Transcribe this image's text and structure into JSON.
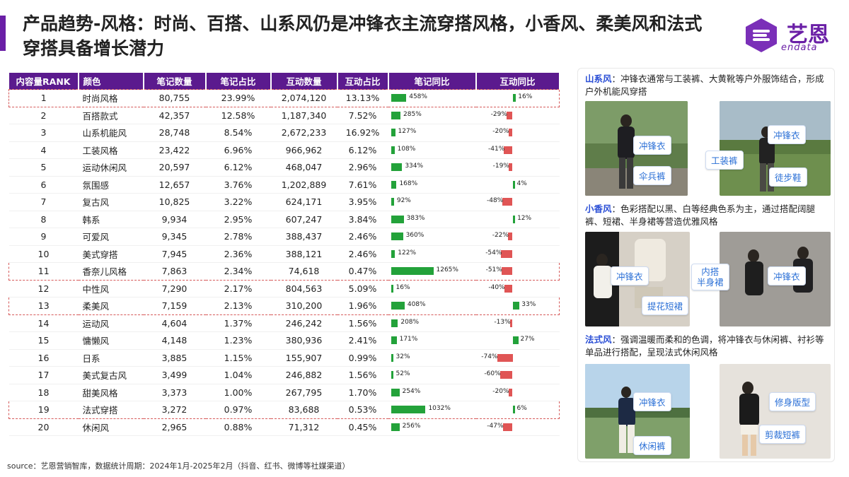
{
  "title": "产品趋势-风格：时尚、百搭、山系风仍是冲锋衣主流穿搭风格，小香风、柔美风和法式穿搭具备增长潜力",
  "logo": {
    "text": "艺恩",
    "sub": "endata"
  },
  "table": {
    "headers": [
      "内容量RANK",
      "颜色",
      "笔记数量",
      "笔记占比",
      "互动数量",
      "互动占比",
      "笔记同比",
      "互动同比"
    ],
    "rows": [
      {
        "rank": "1",
        "name": "时尚风格",
        "notes": "80,755",
        "note_share": "23.99%",
        "interact": "2,074,120",
        "interact_share": "13.13%",
        "note_yoy": "458%",
        "note_yoy_v": 458,
        "int_yoy": "16%",
        "int_yoy_v": 16,
        "highlight": true
      },
      {
        "rank": "2",
        "name": "百搭款式",
        "notes": "42,357",
        "note_share": "12.58%",
        "interact": "1,187,340",
        "interact_share": "7.52%",
        "note_yoy": "285%",
        "note_yoy_v": 285,
        "int_yoy": "-29%",
        "int_yoy_v": -29,
        "highlight": false
      },
      {
        "rank": "3",
        "name": "山系机能风",
        "notes": "28,748",
        "note_share": "8.54%",
        "interact": "2,672,233",
        "interact_share": "16.92%",
        "note_yoy": "127%",
        "note_yoy_v": 127,
        "int_yoy": "-20%",
        "int_yoy_v": -20,
        "highlight": false
      },
      {
        "rank": "4",
        "name": "工装风格",
        "notes": "23,422",
        "note_share": "6.96%",
        "interact": "966,962",
        "interact_share": "6.12%",
        "note_yoy": "108%",
        "note_yoy_v": 108,
        "int_yoy": "-41%",
        "int_yoy_v": -41,
        "highlight": false
      },
      {
        "rank": "5",
        "name": "运动休闲风",
        "notes": "20,597",
        "note_share": "6.12%",
        "interact": "468,047",
        "interact_share": "2.96%",
        "note_yoy": "334%",
        "note_yoy_v": 334,
        "int_yoy": "-19%",
        "int_yoy_v": -19,
        "highlight": false
      },
      {
        "rank": "6",
        "name": "氛围感",
        "notes": "12,657",
        "note_share": "3.76%",
        "interact": "1,202,889",
        "interact_share": "7.61%",
        "note_yoy": "168%",
        "note_yoy_v": 168,
        "int_yoy": "4%",
        "int_yoy_v": 4,
        "highlight": false
      },
      {
        "rank": "7",
        "name": "复古风",
        "notes": "10,825",
        "note_share": "3.22%",
        "interact": "624,171",
        "interact_share": "3.95%",
        "note_yoy": "92%",
        "note_yoy_v": 92,
        "int_yoy": "-48%",
        "int_yoy_v": -48,
        "highlight": false
      },
      {
        "rank": "8",
        "name": "韩系",
        "notes": "9,934",
        "note_share": "2.95%",
        "interact": "607,247",
        "interact_share": "3.84%",
        "note_yoy": "383%",
        "note_yoy_v": 383,
        "int_yoy": "12%",
        "int_yoy_v": 12,
        "highlight": false
      },
      {
        "rank": "9",
        "name": "可爱风",
        "notes": "9,345",
        "note_share": "2.78%",
        "interact": "388,437",
        "interact_share": "2.46%",
        "note_yoy": "360%",
        "note_yoy_v": 360,
        "int_yoy": "-22%",
        "int_yoy_v": -22,
        "highlight": false
      },
      {
        "rank": "10",
        "name": "美式穿搭",
        "notes": "7,945",
        "note_share": "2.36%",
        "interact": "388,121",
        "interact_share": "2.46%",
        "note_yoy": "122%",
        "note_yoy_v": 122,
        "int_yoy": "-54%",
        "int_yoy_v": -54,
        "highlight": false
      },
      {
        "rank": "11",
        "name": "香奈儿风格",
        "notes": "7,863",
        "note_share": "2.34%",
        "interact": "74,618",
        "interact_share": "0.47%",
        "note_yoy": "1265%",
        "note_yoy_v": 1265,
        "int_yoy": "-51%",
        "int_yoy_v": -51,
        "highlight": true
      },
      {
        "rank": "12",
        "name": "中性风",
        "notes": "7,290",
        "note_share": "2.17%",
        "interact": "804,563",
        "interact_share": "5.09%",
        "note_yoy": "16%",
        "note_yoy_v": 16,
        "int_yoy": "-40%",
        "int_yoy_v": -40,
        "highlight": false
      },
      {
        "rank": "13",
        "name": "柔美风",
        "notes": "7,159",
        "note_share": "2.13%",
        "interact": "310,200",
        "interact_share": "1.96%",
        "note_yoy": "408%",
        "note_yoy_v": 408,
        "int_yoy": "33%",
        "int_yoy_v": 33,
        "highlight": true
      },
      {
        "rank": "14",
        "name": "运动风",
        "notes": "4,604",
        "note_share": "1.37%",
        "interact": "246,242",
        "interact_share": "1.56%",
        "note_yoy": "208%",
        "note_yoy_v": 208,
        "int_yoy": "-13%",
        "int_yoy_v": -13,
        "highlight": false
      },
      {
        "rank": "15",
        "name": "慵懒风",
        "notes": "4,148",
        "note_share": "1.23%",
        "interact": "380,936",
        "interact_share": "2.41%",
        "note_yoy": "171%",
        "note_yoy_v": 171,
        "int_yoy": "27%",
        "int_yoy_v": 27,
        "highlight": false
      },
      {
        "rank": "16",
        "name": "日系",
        "notes": "3,885",
        "note_share": "1.15%",
        "interact": "155,907",
        "interact_share": "0.99%",
        "note_yoy": "32%",
        "note_yoy_v": 32,
        "int_yoy": "-74%",
        "int_yoy_v": -74,
        "highlight": false
      },
      {
        "rank": "17",
        "name": "美式复古风",
        "notes": "3,499",
        "note_share": "1.04%",
        "interact": "246,882",
        "interact_share": "1.56%",
        "note_yoy": "52%",
        "note_yoy_v": 52,
        "int_yoy": "-60%",
        "int_yoy_v": -60,
        "highlight": false
      },
      {
        "rank": "18",
        "name": "甜美风格",
        "notes": "3,373",
        "note_share": "1.00%",
        "interact": "267,795",
        "interact_share": "1.70%",
        "note_yoy": "254%",
        "note_yoy_v": 254,
        "int_yoy": "-20%",
        "int_yoy_v": -20,
        "highlight": false
      },
      {
        "rank": "19",
        "name": "法式穿搭",
        "notes": "3,272",
        "note_share": "0.97%",
        "interact": "83,688",
        "interact_share": "0.53%",
        "note_yoy": "1032%",
        "note_yoy_v": 1032,
        "int_yoy": "6%",
        "int_yoy_v": 6,
        "highlight": true
      },
      {
        "rank": "20",
        "name": "休闲风",
        "notes": "2,965",
        "note_share": "0.88%",
        "interact": "71,312",
        "interact_share": "0.45%",
        "note_yoy": "256%",
        "note_yoy_v": 256,
        "int_yoy": "-47%",
        "int_yoy_v": -47,
        "highlight": false
      }
    ]
  },
  "colors": {
    "header": "#5b1a8e",
    "accent": "#6a1fa6",
    "positive": "#23a23a",
    "negative": "#e05555",
    "highlight_border": "#d65a5a",
    "keyword": "#2b4fd6",
    "tag_text": "#2a6fd6"
  },
  "panel": {
    "sections": [
      {
        "keyword": "山系风",
        "text": "：冲锋衣通常与工装裤、大黄靴等户外服饰结合，形成户外机能风穿搭",
        "tags": [
          "冲锋衣",
          "伞兵裤",
          "冲锋衣",
          "工装裤",
          "徒步鞋"
        ]
      },
      {
        "keyword": "小香风",
        "text": "：色彩搭配以黑、白等经典色系为主，通过搭配阔腿裤、短裙、半身裙等营造优雅风格",
        "tags": [
          "冲锋衣",
          "提花短裙",
          "内搭\n半身裙",
          "冲锋衣"
        ]
      },
      {
        "keyword": "法式风",
        "text": "：强调温暖而柔和的色调，将冲锋衣与休闲裤、衬衫等单品进行搭配，呈现法式休闲风格",
        "tags": [
          "冲锋衣",
          "休闲裤",
          "修身版型",
          "剪裁短裤"
        ]
      }
    ]
  },
  "source": "source：艺恩营销智库，数据统计周期：2024年1月-2025年2月（抖音、红书、微博等社媒渠道）"
}
